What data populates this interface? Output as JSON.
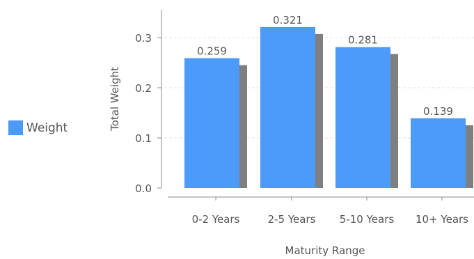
{
  "chart_data": {
    "type": "bar",
    "categories": [
      "0-2 Years",
      "2-5 Years",
      "5-10 Years",
      "10+ Years"
    ],
    "series": [
      {
        "name": "Weight",
        "values": [
          0.259,
          0.321,
          0.281,
          0.139
        ]
      }
    ],
    "data_labels": [
      "0.259",
      "0.321",
      "0.281",
      "0.139"
    ],
    "xlabel": "Maturity Range",
    "ylabel": "Total Weight",
    "ylim": [
      0,
      0.36
    ],
    "yticks": [
      {
        "value": 0.0,
        "label": "0.0"
      },
      {
        "value": 0.1,
        "label": "0.1"
      },
      {
        "value": 0.2,
        "label": "0.2"
      },
      {
        "value": 0.3,
        "label": "0.3"
      }
    ],
    "grid": true,
    "legend_position": "left",
    "colors": {
      "bar": "#4c9bfa",
      "shadow": "#7f7f7f",
      "axis": "#888888",
      "grid": "#e3e3e3",
      "text": "#555555"
    }
  }
}
